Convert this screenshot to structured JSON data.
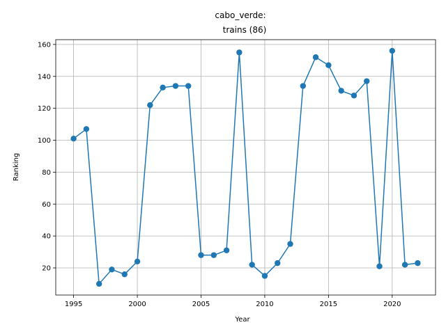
{
  "chart_data": {
    "type": "line",
    "title_line1": "cabo_verde:",
    "title_line2": "trains (86)",
    "xlabel": "Year",
    "ylabel": "Ranking",
    "xlim": [
      1993.6,
      2023.4
    ],
    "ylim": [
      3,
      163
    ],
    "x_ticks": [
      1995,
      2000,
      2005,
      2010,
      2015,
      2020
    ],
    "y_ticks": [
      20,
      40,
      60,
      80,
      100,
      120,
      140,
      160
    ],
    "grid": true,
    "color": "#1f77b4",
    "series": [
      {
        "x": [
          1995,
          1996,
          1997,
          1998,
          1999,
          2000,
          2001,
          2002,
          2003,
          2004,
          2005,
          2006,
          2007,
          2008,
          2009,
          2010,
          2011,
          2012,
          2013,
          2014,
          2015,
          2016,
          2017,
          2018,
          2019,
          2020,
          2021,
          2022
        ],
        "y": [
          101,
          107,
          10,
          19,
          16,
          24,
          122,
          133,
          134,
          134,
          28,
          28,
          31,
          155,
          22,
          15,
          23,
          35,
          134,
          152,
          147,
          131,
          128,
          137,
          21,
          156,
          22,
          23
        ]
      }
    ]
  }
}
